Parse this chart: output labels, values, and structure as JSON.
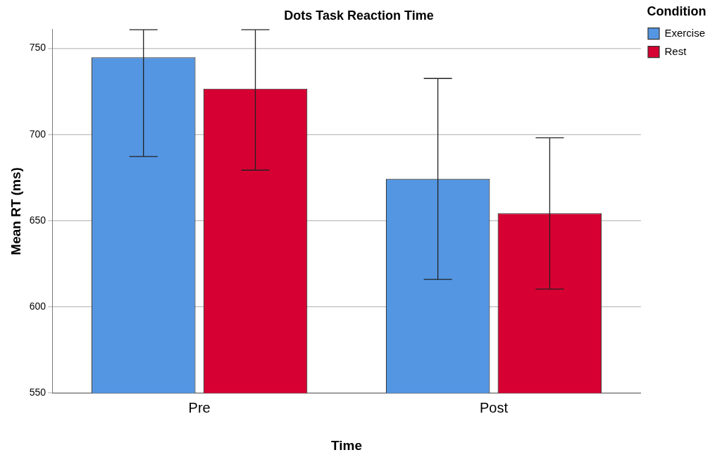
{
  "chart_data": {
    "type": "bar",
    "title": "Dots Task Reaction Time",
    "xlabel": "Time",
    "ylabel": "Mean RT (ms)",
    "legend_title": "Condition",
    "categories": [
      "Pre",
      "Post"
    ],
    "series": [
      {
        "name": "Exercise",
        "color": "#5596e3",
        "values": [
          744.8,
          674.3
        ],
        "errors": [
          [
            687.2,
            760.8
          ],
          [
            615.9,
            732.5
          ]
        ]
      },
      {
        "name": "Rest",
        "color": "#d60032",
        "values": [
          726.6,
          654.3
        ],
        "errors": [
          [
            679.3,
            760.8
          ],
          [
            610.3,
            698.1
          ]
        ]
      }
    ],
    "ylim": [
      550,
      761
    ],
    "yticks": [
      550,
      600,
      650,
      700,
      750
    ],
    "grid": "y",
    "legend": "top right"
  }
}
